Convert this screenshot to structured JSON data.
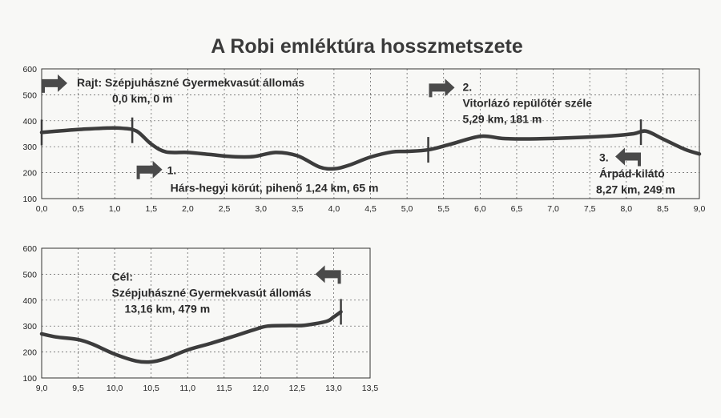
{
  "title": "A Robi emléktúra hosszmetszete",
  "chart_data": [
    {
      "type": "line",
      "xlim": [
        0,
        9
      ],
      "ylim": [
        100,
        600
      ],
      "xticks": [
        "0,0",
        "0,5",
        "1,0",
        "1,5",
        "2,0",
        "2,5",
        "3,0",
        "3,5",
        "4,0",
        "4,5",
        "5,0",
        "5,5",
        "6,0",
        "6,5",
        "7,0",
        "7,5",
        "8,0",
        "8,5",
        "9,0"
      ],
      "yticks": [
        "100",
        "200",
        "300",
        "400",
        "500",
        "600"
      ],
      "grid": true,
      "x": [
        0,
        0.3,
        0.6,
        0.9,
        1.1,
        1.3,
        1.5,
        1.7,
        2.0,
        2.3,
        2.6,
        2.9,
        3.2,
        3.5,
        3.8,
        4.0,
        4.2,
        4.5,
        4.8,
        5.0,
        5.29,
        5.6,
        6.0,
        6.3,
        6.6,
        7.0,
        7.4,
        7.8,
        8.1,
        8.27,
        8.5,
        8.8,
        9.0
      ],
      "values": [
        355,
        362,
        368,
        372,
        371,
        360,
        310,
        280,
        278,
        270,
        262,
        262,
        278,
        265,
        222,
        215,
        228,
        260,
        280,
        282,
        288,
        310,
        340,
        332,
        330,
        332,
        336,
        342,
        350,
        360,
        330,
        290,
        272
      ],
      "markers": [
        0,
        1.24,
        5.29,
        8.2
      ],
      "annotations": [
        {
          "lines": [
            "Rajt: Szépjuhászné Gyermekvasút állomás",
            "0,0 km, 0 m"
          ],
          "arrow": "right",
          "ax": 0,
          "ay": 545
        },
        {
          "lines": [
            "1.",
            "Hárs-hegyi körút, pihenő   1,24 km, 65 m"
          ],
          "arrow": "right",
          "ax": 1.3,
          "ay": 212
        },
        {
          "lines": [
            "2.",
            "Vitorlázó repülőtér széle",
            "5,29 km, 181 m"
          ],
          "arrow": "right",
          "ax": 5.3,
          "ay": 528
        },
        {
          "lines": [
            "3.",
            "Árpád-kilátó",
            "8,27 km, 249 m"
          ],
          "arrow": "left",
          "ax": 8.2,
          "ay": 262
        }
      ]
    },
    {
      "type": "line",
      "xlim": [
        9,
        13.5
      ],
      "ylim": [
        100,
        600
      ],
      "xticks": [
        "9,0",
        "9,5",
        "10,0",
        "10,5",
        "11,0",
        "11,5",
        "12,0",
        "12,5",
        "13,0",
        "13,5"
      ],
      "yticks": [
        "100",
        "200",
        "300",
        "400",
        "500",
        "600"
      ],
      "grid": true,
      "x": [
        9.0,
        9.2,
        9.5,
        9.7,
        10.0,
        10.3,
        10.5,
        10.7,
        11.0,
        11.3,
        11.6,
        11.9,
        12.1,
        12.4,
        12.6,
        12.9,
        13.0,
        13.1
      ],
      "values": [
        270,
        258,
        248,
        230,
        192,
        165,
        162,
        175,
        208,
        232,
        258,
        285,
        300,
        302,
        303,
        318,
        335,
        355
      ],
      "markers": [
        13.16
      ],
      "annotations": [
        {
          "lines": [
            "Cél:",
            "Szépjuhászné Gyermekvasút állomás",
            "13,16 km, 479 m"
          ],
          "arrow": "left",
          "ax": 13.1,
          "ay": 500
        }
      ]
    }
  ]
}
